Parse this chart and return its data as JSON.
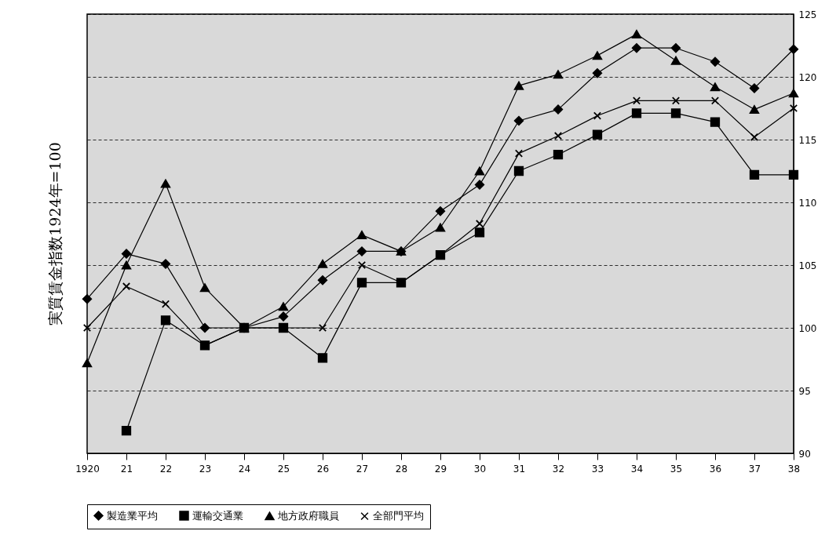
{
  "chart_data": {
    "type": "line",
    "ylabel": "実質賃金指数1924年=100",
    "categories": [
      "1920",
      "21",
      "22",
      "23",
      "24",
      "25",
      "26",
      "27",
      "28",
      "29",
      "30",
      "31",
      "32",
      "33",
      "34",
      "35",
      "36",
      "37",
      "38"
    ],
    "series": [
      {
        "name": "製造業平均",
        "color": "#000000",
        "marker": "diamond",
        "values": [
          102.3,
          105.9,
          105.1,
          100,
          100,
          100.9,
          103.8,
          106.1,
          106.1,
          109.3,
          111.4,
          116.5,
          117.4,
          120.3,
          122.3,
          122.3,
          121.2,
          119.1,
          122.2
        ]
      },
      {
        "name": "運輸交通業",
        "color": "#000000",
        "marker": "square",
        "values": [
          null,
          91.8,
          100.6,
          98.6,
          100,
          100,
          97.6,
          103.6,
          103.6,
          105.8,
          107.6,
          112.5,
          113.8,
          115.4,
          117.1,
          117.1,
          116.4,
          112.2,
          112.2
        ]
      },
      {
        "name": "地方政府職員",
        "color": "#000000",
        "marker": "triangle",
        "values": [
          97.2,
          105.0,
          111.5,
          103.2,
          100,
          101.7,
          105.1,
          107.4,
          106.1,
          108.0,
          112.5,
          119.3,
          120.2,
          121.7,
          123.4,
          121.3,
          119.2,
          117.4,
          118.7
        ]
      },
      {
        "name": "全部門平均",
        "color": "#000000",
        "marker": "cross",
        "values": [
          100,
          103.3,
          101.9,
          98.6,
          100,
          100,
          100,
          105.0,
          103.6,
          105.8,
          108.3,
          113.9,
          115.3,
          116.9,
          118.1,
          118.1,
          118.1,
          115.2,
          117.5
        ]
      }
    ],
    "ylim": [
      90,
      125
    ],
    "yticks": [
      90,
      95,
      100,
      105,
      110,
      115,
      120,
      125
    ],
    "grid": "y",
    "legend": "bottom",
    "line_style": "solid"
  }
}
